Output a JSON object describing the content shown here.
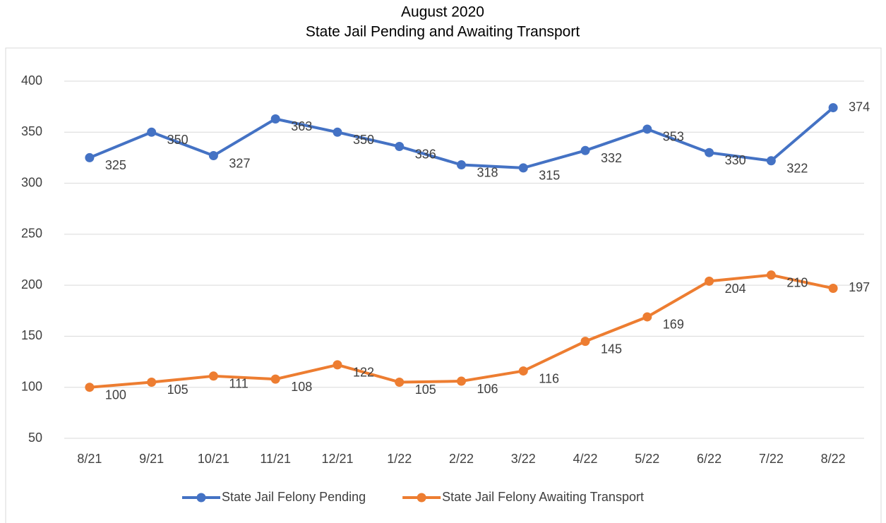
{
  "chart_data": {
    "type": "line",
    "title": "August 2020",
    "subtitle": "State Jail Pending and Awaiting Transport",
    "categories": [
      "8/21",
      "9/21",
      "10/21",
      "11/21",
      "12/21",
      "1/22",
      "2/22",
      "3/22",
      "4/22",
      "5/22",
      "6/22",
      "7/22",
      "8/22"
    ],
    "series": [
      {
        "name": "State Jail Felony Pending",
        "color": "#4472c4",
        "values": [
          325,
          350,
          327,
          363,
          350,
          336,
          318,
          315,
          332,
          353,
          330,
          322,
          374
        ]
      },
      {
        "name": "State Jail Felony Awaiting Transport",
        "color": "#ed7d31",
        "values": [
          100,
          105,
          111,
          108,
          122,
          105,
          106,
          116,
          145,
          169,
          204,
          210,
          197
        ]
      }
    ],
    "ylim": [
      50,
      400
    ],
    "yticks": [
      50,
      100,
      150,
      200,
      250,
      300,
      350,
      400
    ],
    "grid": true,
    "legend": "bottom"
  }
}
